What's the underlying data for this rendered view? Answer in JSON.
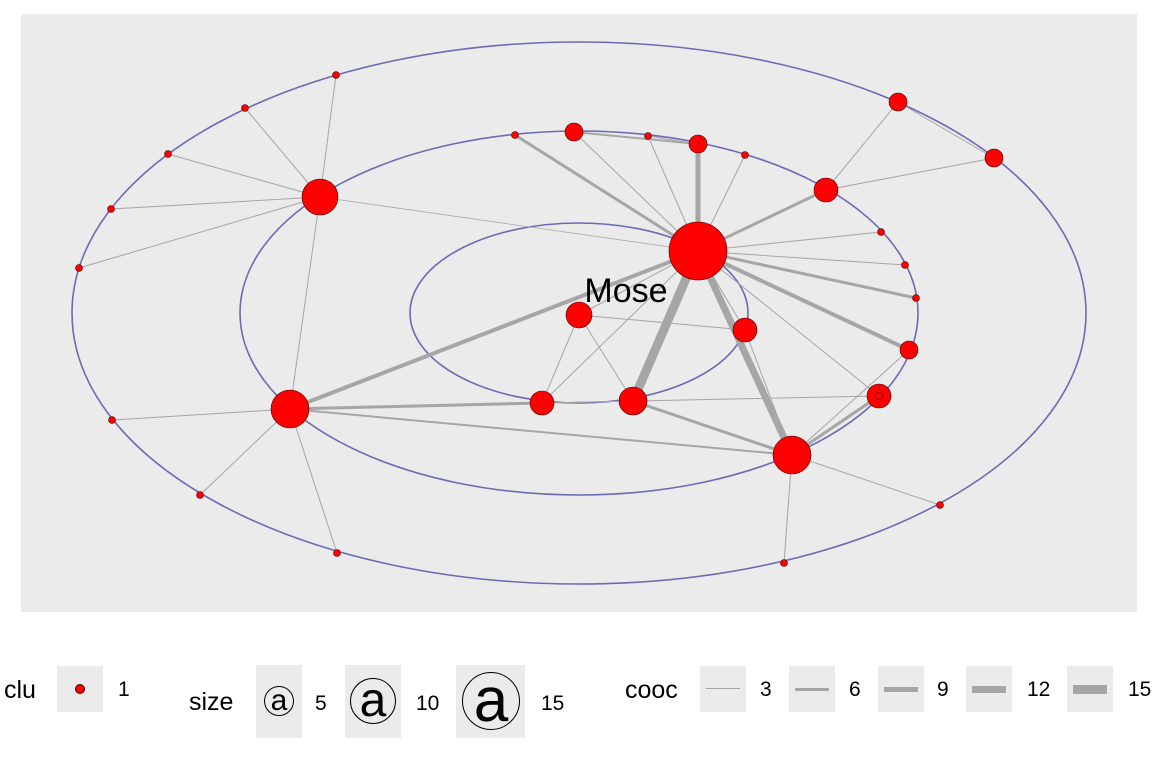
{
  "diagram": {
    "type": "co-occurrence network (concentric layout)",
    "rings": 3,
    "labeled_node": "Mose",
    "nodes": [
      {
        "id": "hub",
        "size": 15
      },
      {
        "id": "Mose",
        "label": "Mose",
        "size": 5
      },
      {
        "id": "n_l1",
        "size": 10
      },
      {
        "id": "n_l2",
        "size": 10
      },
      {
        "id": "n_br",
        "size": 10
      },
      {
        "id": "n_mid",
        "size": 5
      },
      {
        "id": "n_mid2",
        "size": 5
      },
      {
        "id": "n_c1",
        "size": 5
      },
      {
        "id": "n_r1",
        "size": 5
      },
      {
        "id": "n_top1",
        "size": 3
      },
      {
        "id": "n_top2",
        "size": 3
      },
      {
        "id": "n_tr1",
        "size": 4
      },
      {
        "id": "n_tr2",
        "size": 4
      },
      {
        "id": "n_tr3",
        "size": 4
      },
      {
        "id": "n_r2",
        "size": 4
      },
      {
        "id": "n_r3",
        "size": 5
      }
    ],
    "edges": [
      {
        "from": "hub",
        "to": "n_mid",
        "cooc": 15
      },
      {
        "from": "hub",
        "to": "n_br",
        "cooc": 12
      },
      {
        "from": "hub",
        "to": "n_l2",
        "cooc": 6
      },
      {
        "from": "hub",
        "to": "n_top2",
        "cooc": 9
      },
      {
        "from": "n_mid",
        "to": "n_br",
        "cooc": 6
      },
      {
        "from": "n_l2",
        "to": "n_mid2",
        "cooc": 6
      }
    ]
  },
  "legend": {
    "clu": {
      "title": "clu",
      "entries": [
        "1"
      ],
      "color": "#ff0000"
    },
    "size": {
      "title": "size",
      "entries": [
        "5",
        "10",
        "15"
      ],
      "glyph": "a"
    },
    "cooc": {
      "title": "cooc",
      "entries": [
        "3",
        "6",
        "9",
        "12",
        "15"
      ],
      "edge_color": "#a6a6a6"
    }
  }
}
